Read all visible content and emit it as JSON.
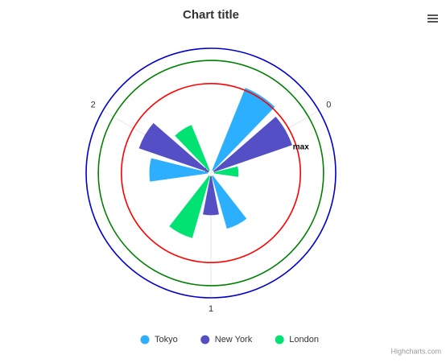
{
  "chart_data": {
    "type": "polar-column",
    "title": "Chart title",
    "categories": [
      "0",
      "1",
      "2"
    ],
    "series": [
      {
        "name": "Tokyo",
        "color": "#2caffe",
        "values": [
          7.3,
          4.5,
          4.8
        ]
      },
      {
        "name": "New York",
        "color": "#544fc5",
        "values": [
          6.8,
          3.2,
          6.0
        ]
      },
      {
        "name": "London",
        "color": "#00e272",
        "values": [
          2.0,
          5.3,
          4.0
        ]
      }
    ],
    "ylim": [
      0,
      10
    ],
    "yticks": [
      0
    ],
    "plot_lines": [
      {
        "value": 7.1,
        "color": "#ff0000",
        "label": "max"
      },
      {
        "value": 9,
        "color": "#008000"
      },
      {
        "value": 10,
        "color": "#0000cc"
      }
    ],
    "legend_position": "bottom",
    "credits": "Highcharts.com"
  }
}
